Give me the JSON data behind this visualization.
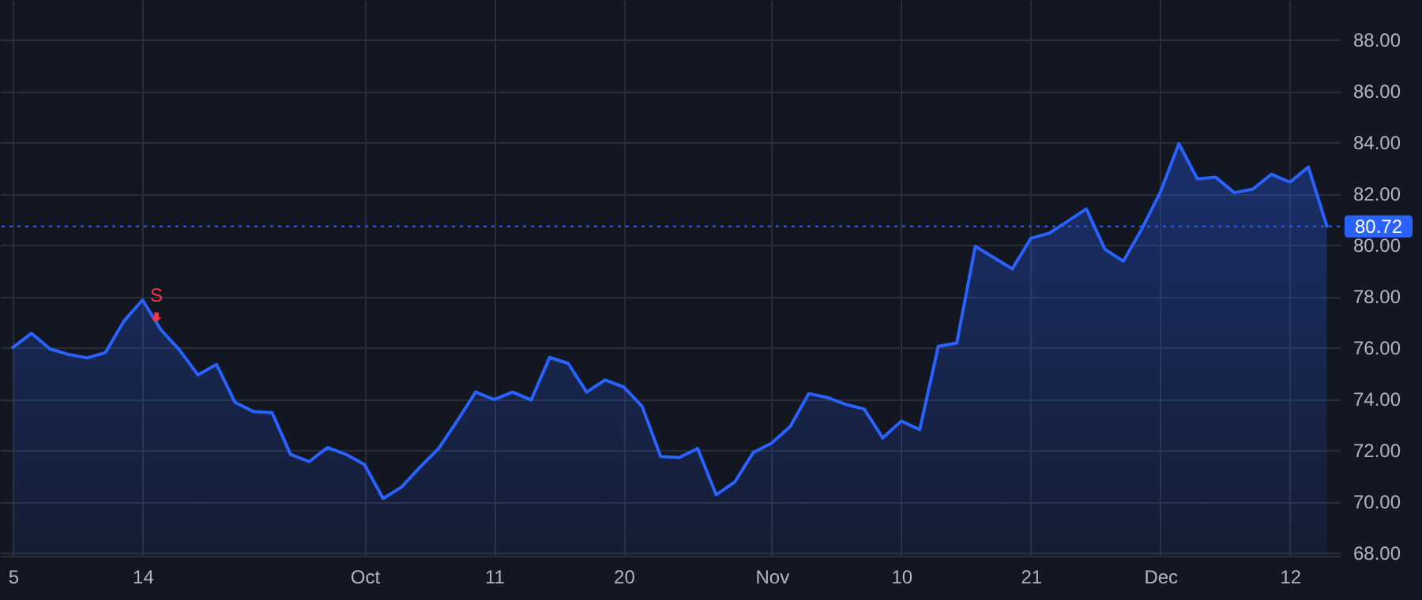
{
  "chart_data": {
    "type": "area",
    "categories": [
      "5",
      null,
      null,
      null,
      null,
      null,
      null,
      "14",
      null,
      null,
      null,
      null,
      null,
      null,
      null,
      null,
      null,
      null,
      null,
      "Oct",
      null,
      null,
      null,
      null,
      null,
      null,
      "11",
      null,
      null,
      null,
      null,
      null,
      null,
      "20",
      null,
      null,
      null,
      null,
      null,
      null,
      null,
      "Nov",
      null,
      null,
      null,
      null,
      null,
      null,
      "10",
      null,
      null,
      null,
      null,
      null,
      null,
      "21",
      null,
      null,
      null,
      null,
      null,
      null,
      "Dec",
      null,
      null,
      null,
      null,
      null,
      null,
      "12",
      null,
      null
    ],
    "series": [
      {
        "color": "#2962ff",
        "values": [
          76.0,
          76.55,
          75.94,
          75.73,
          75.59,
          75.8,
          77.03,
          77.85,
          76.68,
          75.9,
          74.93,
          75.34,
          73.86,
          73.5,
          73.46,
          71.83,
          71.55,
          72.1,
          71.83,
          71.43,
          70.11,
          70.56,
          71.34,
          72.06,
          73.13,
          74.26,
          73.97,
          74.26,
          73.95,
          75.61,
          75.38,
          74.26,
          74.73,
          74.46,
          73.7,
          71.75,
          71.71,
          72.06,
          70.26,
          70.75,
          71.9,
          72.27,
          72.92,
          74.2,
          74.05,
          73.78,
          73.6,
          72.47,
          73.13,
          72.8,
          76.04,
          76.17,
          79.94,
          79.5,
          79.06,
          80.25,
          80.45,
          80.92,
          81.4,
          79.83,
          79.36,
          80.62,
          82.05,
          83.94,
          82.57,
          82.63,
          82.03,
          82.17,
          82.75,
          82.44,
          83.03,
          80.72
        ]
      }
    ],
    "ylim": [
      67.88,
      89.54
    ],
    "yticks": [
      {
        "value": 68,
        "label": "68.00"
      },
      {
        "value": 70,
        "label": "70.00"
      },
      {
        "value": 72,
        "label": "72.00"
      },
      {
        "value": 74,
        "label": "74.00"
      },
      {
        "value": 76,
        "label": "76.00"
      },
      {
        "value": 78,
        "label": "78.00"
      },
      {
        "value": 80,
        "label": "80.00"
      },
      {
        "value": 82,
        "label": "82.00"
      },
      {
        "value": 84,
        "label": "84.00"
      },
      {
        "value": 86,
        "label": "86.00"
      },
      {
        "value": 88,
        "label": "88.00"
      }
    ],
    "ref_lines": [
      {
        "axis": "y",
        "value": 80.72,
        "label": "80.72",
        "color": "#2962ff",
        "line_style": "dotted"
      }
    ],
    "annotations": [
      "S"
    ],
    "grid": true
  }
}
